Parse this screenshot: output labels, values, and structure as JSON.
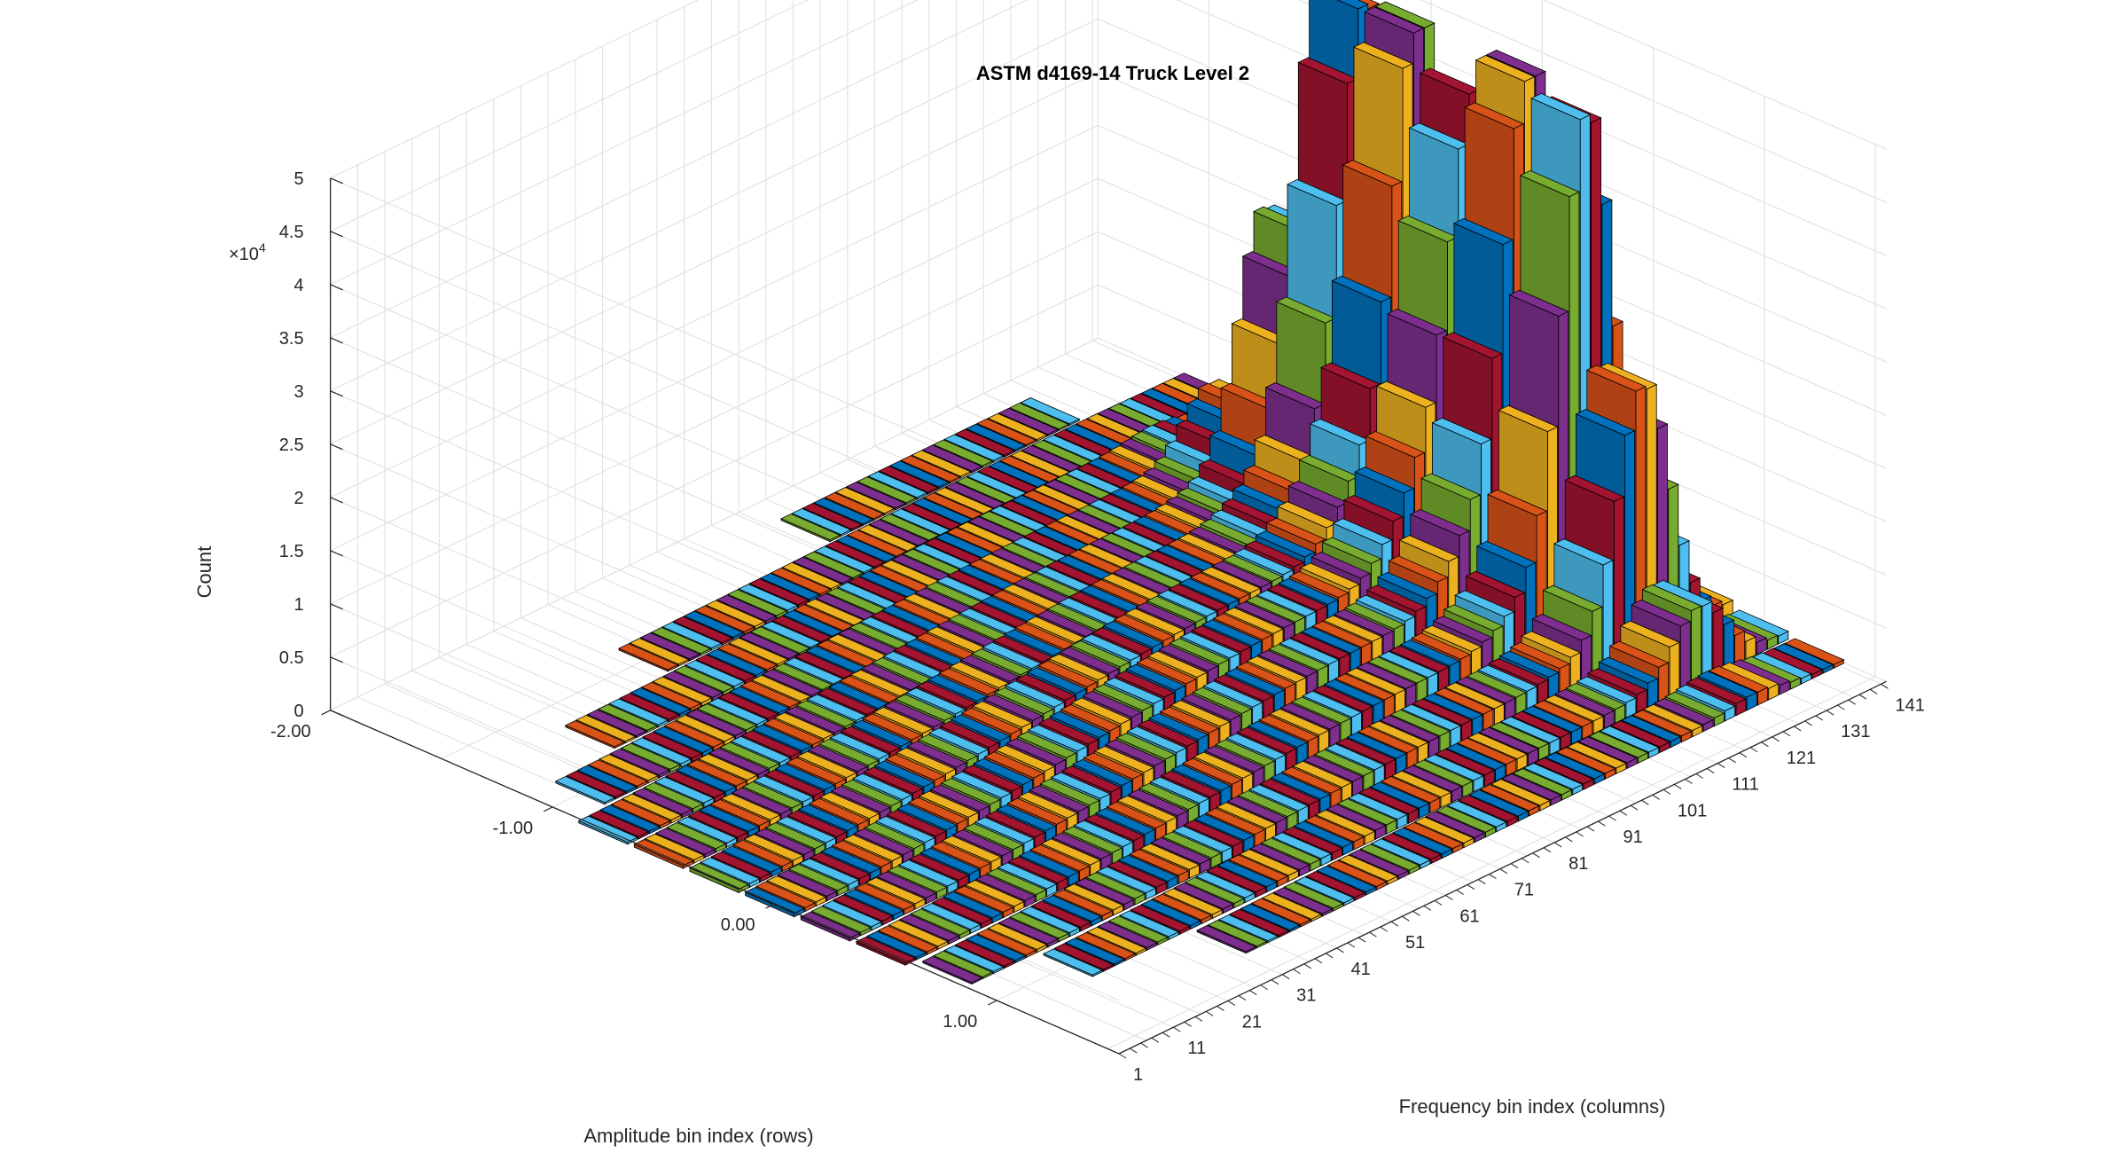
{
  "chart_data": {
    "type": "bar3d",
    "title": "ASTM d4169-14 Truck Level 2",
    "xlabel": "Frequency bin index (columns)",
    "ylabel": "Amplitude bin index (rows)",
    "zlabel": "Count",
    "z_exponent": "×10",
    "z_exponent_power": "4",
    "zlim": [
      0,
      5
    ],
    "z_ticks": [
      "0",
      "0.5",
      "1",
      "1.5",
      "2",
      "2.5",
      "3",
      "3.5",
      "4",
      "4.5",
      "5"
    ],
    "amplitude_ticks": [
      "-2.00",
      "-1.00",
      "0.00",
      "1.00"
    ],
    "frequency_ticks": [
      "1",
      "11",
      "21",
      "31",
      "41",
      "51",
      "61",
      "71",
      "81",
      "91",
      "101",
      "111",
      "121",
      "131",
      "141"
    ],
    "frequency_bins": 141,
    "grid": true,
    "peaks": [
      {
        "amplitude": -0.4,
        "frequency": 126,
        "count": 4.8
      },
      {
        "amplitude": 0.4,
        "frequency": 126,
        "count": 4.7
      }
    ],
    "series_colors": [
      "#0072BD",
      "#D95319",
      "#EDB120",
      "#7E2F8E",
      "#77AC30",
      "#4DBEEE",
      "#A2142F"
    ]
  }
}
